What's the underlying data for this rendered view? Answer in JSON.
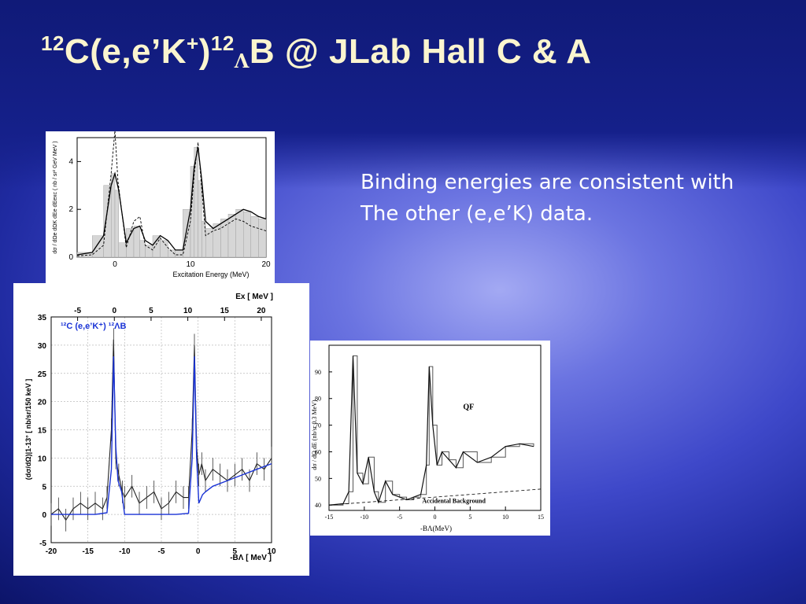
{
  "slide": {
    "title": "¹²C(e,e’K⁺)¹²ΛB  @ JLab Hall C & A",
    "title_parts": {
      "sup1": "12",
      "p1": "C(e,e’K",
      "sup2": "+",
      "p2": ")",
      "sup3": "12",
      "sub": "Λ",
      "p3": "B  @ JLab Hall C & A"
    },
    "body_lines": [
      "Binding energies are consistent with",
      "The other (e,e’K) data."
    ],
    "colors": {
      "title": "#fbf5cf",
      "body": "#ffffff",
      "curve_blue": "#1a33d6"
    }
  },
  "chart_data": [
    {
      "type": "line",
      "xlabel": "Excitation Energy (MeV)",
      "ylabel": "dσ / dΩe dΩK dEe dEexc  ( nb / sr² GeV MeV )",
      "xlim": [
        -5,
        20
      ],
      "ylim": [
        0,
        5
      ],
      "xticks": [
        0,
        10,
        20
      ],
      "yticks": [
        0,
        2,
        4
      ],
      "series": [
        {
          "name": "",
          "style": "solid",
          "x": [
            -5,
            -3,
            -1.5,
            -0.5,
            0,
            0.5,
            1.5,
            2.5,
            3.3,
            4,
            5,
            6,
            7,
            8,
            9,
            10,
            10.5,
            11,
            11.5,
            12,
            13,
            14,
            15,
            16,
            17,
            18,
            19,
            20
          ],
          "y": [
            0.1,
            0.2,
            0.9,
            3.0,
            3.5,
            2.8,
            0.6,
            1.2,
            1.3,
            0.7,
            0.5,
            0.9,
            0.7,
            0.3,
            0.3,
            2.0,
            3.8,
            4.6,
            3.2,
            1.5,
            1.2,
            1.4,
            1.6,
            1.8,
            2.0,
            1.9,
            1.7,
            1.6
          ]
        },
        {
          "name": "",
          "style": "dashed",
          "x": [
            -5,
            -3,
            -1.5,
            -0.5,
            0,
            0.4,
            1.5,
            2.5,
            3.3,
            4,
            5,
            6,
            7,
            8,
            9,
            10,
            10.5,
            11,
            11.5,
            12,
            13,
            14,
            15,
            16,
            17,
            18,
            19,
            20
          ],
          "y": [
            0.05,
            0.1,
            0.5,
            3.5,
            5.3,
            3.2,
            0.4,
            1.5,
            1.7,
            0.5,
            0.3,
            0.8,
            0.4,
            0.1,
            0.1,
            1.5,
            3.5,
            4.8,
            2.8,
            0.9,
            1.1,
            1.2,
            1.4,
            1.6,
            1.5,
            1.3,
            1.2,
            1.1
          ]
        }
      ]
    },
    {
      "type": "line",
      "title": "¹²C (e,e’K⁺) ¹²ΛB",
      "xlabel": "-BΛ [ MeV ]",
      "x2label": "Ex [ MeV ]",
      "ylabel": "(dσ/dΩ)|1-13° [ nb/sr/150 keV ]",
      "xlim": [
        -20,
        10
      ],
      "ylim": [
        -5,
        35
      ],
      "xticks": [
        -20,
        -15,
        -10,
        -5,
        0,
        5,
        10
      ],
      "x2ticks": [
        -5,
        0,
        5,
        10,
        15,
        20
      ],
      "yticks": [
        -5,
        0,
        5,
        10,
        15,
        20,
        25,
        30,
        35
      ],
      "grid": true,
      "series": [
        {
          "name": "",
          "color": "#1a33d6",
          "x": [
            -20,
            -14,
            -12.4,
            -11.8,
            -11.5,
            -11.2,
            -10.9,
            -10.4,
            -10.0,
            -9,
            -7,
            -3,
            -1.3,
            -0.8,
            -0.5,
            -0.2,
            0.1,
            0.6,
            1,
            2,
            4,
            6,
            8,
            10
          ],
          "y": [
            0,
            0,
            0.3,
            8,
            28,
            12,
            6,
            4,
            0,
            0,
            0,
            0,
            0.2,
            10,
            28,
            10,
            2,
            3.5,
            4,
            5,
            6,
            7,
            8,
            9
          ]
        },
        {
          "name": "",
          "color": "#222222",
          "x": [
            -20,
            -19,
            -18,
            -17,
            -16,
            -15,
            -14,
            -13,
            -12.4,
            -11.8,
            -11.5,
            -11.2,
            -10.8,
            -10.3,
            -10,
            -9,
            -8,
            -7,
            -6,
            -5,
            -4,
            -3,
            -2,
            -1.3,
            -0.8,
            -0.5,
            -0.2,
            0.1,
            0.5,
            1,
            2,
            3,
            4,
            5,
            6,
            7,
            8,
            9,
            10
          ],
          "y": [
            0,
            1,
            -1,
            1,
            2,
            1,
            2,
            1,
            3,
            15,
            31,
            10,
            7,
            4,
            3,
            5,
            2,
            3,
            4,
            1,
            2,
            4,
            3,
            3,
            15,
            30,
            12,
            7,
            9,
            6,
            8,
            7,
            6,
            7,
            8,
            6,
            9,
            8,
            10
          ]
        }
      ]
    },
    {
      "type": "line",
      "xlabel": "-BΛ(MeV)",
      "ylabel": "dσ / dΩ dE  (nb/sr 0.3 MeV)",
      "xlim": [
        -15,
        15
      ],
      "ylim": [
        38,
        100
      ],
      "xticks": [
        -15,
        -10,
        -5,
        0,
        5,
        10,
        15
      ],
      "yticks": [
        40,
        50,
        60,
        70,
        80,
        90
      ],
      "annotations": [
        "QF",
        "Accidental Background"
      ],
      "series": [
        {
          "name": "",
          "style": "solid",
          "x": [
            -15,
            -13,
            -12.2,
            -11.6,
            -11,
            -10.2,
            -9.4,
            -8.6,
            -8,
            -7,
            -6,
            -5,
            -4,
            -3,
            -2,
            -1.2,
            -0.8,
            -0.3,
            0.3,
            1,
            2,
            3,
            4,
            6,
            8,
            10,
            12,
            14
          ],
          "y": [
            40,
            40.5,
            45,
            96,
            52,
            48,
            58,
            45,
            41,
            49,
            44,
            43,
            42,
            43,
            44,
            55,
            92,
            70,
            55,
            60,
            57,
            54,
            60,
            56,
            58,
            62,
            63,
            62
          ]
        },
        {
          "name": "",
          "style": "dashed",
          "x": [
            -15,
            -10,
            -5,
            0,
            5,
            10,
            15
          ],
          "y": [
            40,
            41,
            42,
            43,
            44,
            45,
            46
          ]
        }
      ]
    }
  ]
}
